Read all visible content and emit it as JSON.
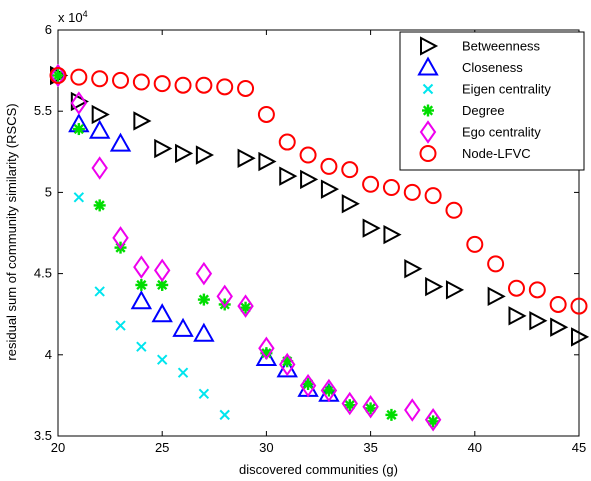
{
  "chart_data": {
    "type": "scatter",
    "title": "",
    "xlabel": "discovered communities (g)",
    "ylabel": "residual sum of community similarity (RSCS)",
    "y_multiplier_label": "x 10",
    "y_multiplier_exponent": "4",
    "xlim": [
      20,
      45
    ],
    "ylim": [
      3.5,
      6
    ],
    "xticks": [
      "20",
      "25",
      "30",
      "35",
      "40",
      "45"
    ],
    "yticks": [
      "3.5",
      "4",
      "4.5",
      "5",
      "5.5",
      "6"
    ],
    "grid": false,
    "legend_position": "top-right",
    "series": [
      {
        "name": "Betweenness",
        "marker": "triangle-right",
        "color": "#000000",
        "points": [
          [
            20,
            5.72
          ],
          [
            21,
            5.56
          ],
          [
            22,
            5.48
          ],
          [
            24,
            5.44
          ],
          [
            25,
            5.27
          ],
          [
            26,
            5.24
          ],
          [
            27,
            5.23
          ],
          [
            29,
            5.21
          ],
          [
            30,
            5.19
          ],
          [
            31,
            5.1
          ],
          [
            32,
            5.08
          ],
          [
            33,
            5.02
          ],
          [
            34,
            4.93
          ],
          [
            35,
            4.78
          ],
          [
            36,
            4.74
          ],
          [
            37,
            4.53
          ],
          [
            38,
            4.42
          ],
          [
            39,
            4.4
          ],
          [
            41,
            4.36
          ],
          [
            42,
            4.24
          ],
          [
            43,
            4.21
          ],
          [
            44,
            4.17
          ],
          [
            45,
            4.11
          ]
        ]
      },
      {
        "name": "Closeness",
        "marker": "triangle-up",
        "color": "#0000ff",
        "points": [
          [
            21,
            5.42
          ],
          [
            22,
            5.38
          ],
          [
            23,
            5.3
          ],
          [
            24,
            4.33
          ],
          [
            25,
            4.25
          ],
          [
            26,
            4.16
          ],
          [
            27,
            4.13
          ],
          [
            30,
            3.98
          ],
          [
            31,
            3.91
          ],
          [
            32,
            3.79
          ],
          [
            33,
            3.76
          ]
        ]
      },
      {
        "name": "Eigen centrality",
        "marker": "x",
        "color": "#00e5ee",
        "points": [
          [
            20,
            5.72
          ],
          [
            21,
            4.97
          ],
          [
            22,
            4.39
          ],
          [
            23,
            4.18
          ],
          [
            24,
            4.05
          ],
          [
            25,
            3.97
          ],
          [
            26,
            3.89
          ],
          [
            27,
            3.76
          ],
          [
            28,
            3.63
          ]
        ]
      },
      {
        "name": "Degree",
        "marker": "asterisk",
        "color": "#00dd00",
        "points": [
          [
            20,
            5.72
          ],
          [
            21,
            5.39
          ],
          [
            22,
            4.92
          ],
          [
            23,
            4.66
          ],
          [
            24,
            4.43
          ],
          [
            25,
            4.43
          ],
          [
            27,
            4.34
          ],
          [
            28,
            4.31
          ],
          [
            29,
            4.29
          ],
          [
            30,
            4.01
          ],
          [
            31,
            3.96
          ],
          [
            32,
            3.82
          ],
          [
            33,
            3.78
          ],
          [
            34,
            3.69
          ],
          [
            35,
            3.67
          ],
          [
            36,
            3.63
          ],
          [
            38,
            3.59
          ]
        ]
      },
      {
        "name": "Ego centrality",
        "marker": "diamond",
        "color": "#ee00ee",
        "points": [
          [
            20,
            5.72
          ],
          [
            21,
            5.55
          ],
          [
            22,
            5.15
          ],
          [
            23,
            4.72
          ],
          [
            24,
            4.54
          ],
          [
            25,
            4.52
          ],
          [
            27,
            4.5
          ],
          [
            28,
            4.36
          ],
          [
            29,
            4.3
          ],
          [
            30,
            4.04
          ],
          [
            31,
            3.94
          ],
          [
            32,
            3.81
          ],
          [
            33,
            3.78
          ],
          [
            34,
            3.7
          ],
          [
            35,
            3.68
          ],
          [
            37,
            3.66
          ],
          [
            38,
            3.6
          ]
        ]
      },
      {
        "name": "Node-LFVC",
        "marker": "circle",
        "color": "#ff0000",
        "points": [
          [
            20,
            5.72
          ],
          [
            21,
            5.71
          ],
          [
            22,
            5.7
          ],
          [
            23,
            5.69
          ],
          [
            24,
            5.68
          ],
          [
            25,
            5.67
          ],
          [
            26,
            5.66
          ],
          [
            27,
            5.66
          ],
          [
            28,
            5.65
          ],
          [
            29,
            5.64
          ],
          [
            30,
            5.48
          ],
          [
            31,
            5.31
          ],
          [
            32,
            5.23
          ],
          [
            33,
            5.16
          ],
          [
            34,
            5.14
          ],
          [
            35,
            5.05
          ],
          [
            36,
            5.03
          ],
          [
            37,
            5.0
          ],
          [
            38,
            4.98
          ],
          [
            39,
            4.89
          ],
          [
            40,
            4.68
          ],
          [
            41,
            4.56
          ],
          [
            42,
            4.41
          ],
          [
            43,
            4.4
          ],
          [
            44,
            4.31
          ],
          [
            45,
            4.3
          ]
        ]
      }
    ]
  }
}
